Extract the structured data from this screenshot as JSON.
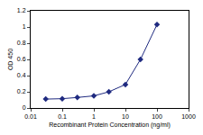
{
  "chart_data": {
    "type": "line",
    "x_label": "Recombinant Protein Concentration (ng/ml)",
    "y_label": "OD 450",
    "x": [
      0.03,
      0.1,
      0.3,
      1,
      3,
      10,
      30,
      100
    ],
    "values": [
      0.11,
      0.115,
      0.13,
      0.15,
      0.2,
      0.29,
      0.6,
      1.03
    ],
    "color": "#1f2a80",
    "marker": "diamond",
    "line_style": "solid",
    "log": "x",
    "xlim": [
      0.01,
      1000
    ],
    "xticks": [
      0.01,
      0.1,
      1,
      10,
      100,
      1000
    ],
    "ylim": [
      0,
      1.2
    ],
    "yticks": [
      0,
      0.2,
      0.4,
      0.6,
      0.8,
      1,
      1.2
    ],
    "grid": false
  }
}
